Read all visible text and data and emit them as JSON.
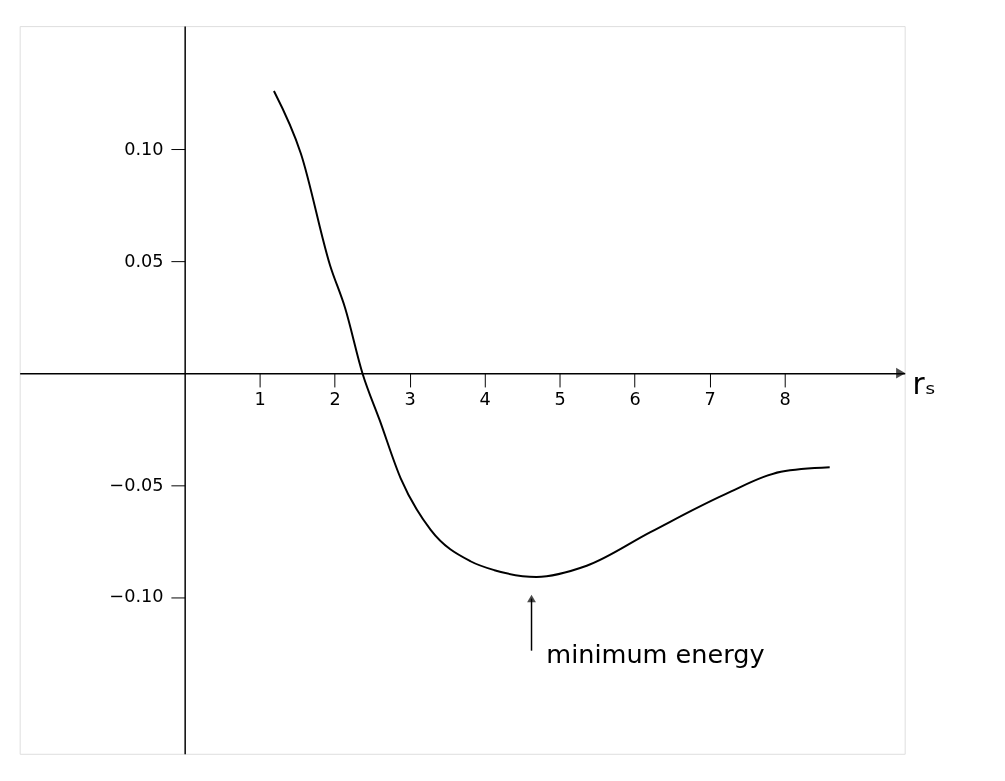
{
  "chart_data": {
    "type": "line",
    "xlabel": "rₛ",
    "x": [
      1.19,
      1.55,
      1.94,
      2.14,
      2.37,
      2.6,
      2.88,
      3.28,
      3.81,
      4.13,
      4.69,
      5.36,
      6.21,
      7.21,
      7.95,
      8.6
    ],
    "series": [
      {
        "color": "#000000",
        "values": [
          0.126,
          0.098,
          0.048,
          0.029,
          0.0,
          -0.021,
          -0.047,
          -0.07,
          -0.084,
          -0.088,
          -0.091,
          -0.086,
          -0.071,
          -0.054,
          -0.044,
          -0.042
        ]
      }
    ],
    "xlim": [
      -2.2,
      9.6
    ],
    "ylim": [
      -0.17,
      0.155
    ],
    "xticks": [
      1,
      2,
      3,
      4,
      5,
      6,
      7,
      8
    ],
    "yticks": [
      {
        "value": 0.1,
        "label": "0.10"
      },
      {
        "value": 0.05,
        "label": "0.05"
      },
      {
        "value": -0.05,
        "label": "−0.05"
      },
      {
        "value": -0.1,
        "label": "−0.10"
      }
    ],
    "annotations": [
      {
        "text": "minimum energy",
        "x": 4.69,
        "y": -0.091
      }
    ],
    "grid": false,
    "marker": "none",
    "line_style": "solid"
  }
}
